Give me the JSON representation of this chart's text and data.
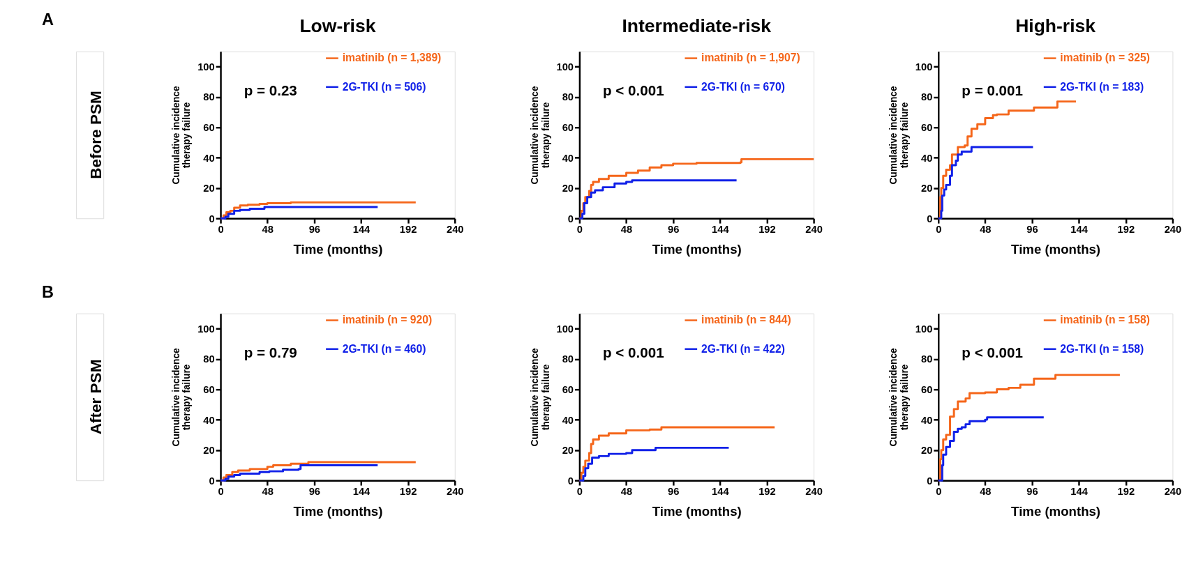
{
  "chart_data": [
    {
      "type": "step",
      "title": "Low-risk",
      "xlabel": "Time (months)",
      "ylabel": "Cumulative incidence therapy failure",
      "xlim": [
        0,
        240
      ],
      "xticks": [
        0,
        48,
        96,
        144,
        192,
        240
      ],
      "ylim": [
        0,
        110
      ],
      "yticks": [
        0,
        20,
        40,
        60,
        80,
        100
      ],
      "grid": false,
      "legend": "top right",
      "annotations": [
        "p = 0.23",
        "A",
        "Before PSM"
      ],
      "series": [
        {
          "name": "imatinib (n = 1,389)",
          "color": "#f5661a",
          "x": [
            0,
            3,
            6,
            10,
            14,
            20,
            28,
            40,
            48,
            72,
            200
          ],
          "values": [
            0,
            2,
            4,
            5,
            7,
            8.5,
            9,
            9.5,
            10,
            10.5,
            10.5
          ]
        },
        {
          "name": "2G-TKI (n = 506)",
          "color": "#1020e8",
          "x": [
            0,
            5,
            8,
            14,
            20,
            30,
            45,
            161
          ],
          "values": [
            0,
            1,
            3,
            5,
            5.5,
            6.3,
            7.5,
            7.5
          ]
        }
      ]
    },
    {
      "type": "step",
      "title": "Intermediate-risk",
      "xlabel": "Time (months)",
      "ylabel": "Cumulative incidence therapy failure",
      "xlim": [
        0,
        240
      ],
      "xticks": [
        0,
        48,
        96,
        144,
        192,
        240
      ],
      "ylim": [
        0,
        110
      ],
      "yticks": [
        0,
        20,
        40,
        60,
        80,
        100
      ],
      "grid": false,
      "legend": "top right",
      "annotations": [
        "p < 0.001"
      ],
      "series": [
        {
          "name": "imatinib (n = 1,907)",
          "color": "#f5661a",
          "x": [
            0,
            2,
            4,
            6,
            10,
            12,
            14,
            20,
            30,
            48,
            60,
            72,
            84,
            96,
            120,
            165,
            166,
            240
          ],
          "values": [
            0,
            5,
            10,
            14,
            18,
            22,
            24,
            26,
            28,
            30,
            31.5,
            33.5,
            35,
            36,
            36.5,
            37,
            39,
            39
          ]
        },
        {
          "name": "2G-TKI (n = 670)",
          "color": "#1020e8",
          "x": [
            0,
            3,
            5,
            8,
            12,
            16,
            24,
            36,
            48,
            54,
            161
          ],
          "values": [
            0,
            3,
            10,
            14,
            17,
            18.5,
            20.5,
            23,
            24,
            25,
            25
          ]
        }
      ]
    },
    {
      "type": "step",
      "title": "High-risk",
      "xlabel": "Time (months)",
      "ylabel": "Cumulative incidence therapy failure",
      "xlim": [
        0,
        240
      ],
      "xticks": [
        0,
        48,
        96,
        144,
        192,
        240
      ],
      "ylim": [
        0,
        110
      ],
      "yticks": [
        0,
        20,
        40,
        60,
        80,
        100
      ],
      "grid": false,
      "legend": "top right",
      "annotations": [
        "p = 0.001"
      ],
      "series": [
        {
          "name": "imatinib (n = 325)",
          "color": "#f5661a",
          "x": [
            0,
            2,
            3,
            5,
            8,
            12,
            14,
            20,
            27,
            30,
            34,
            40,
            48,
            56,
            60,
            72,
            96,
            98,
            120,
            122,
            141
          ],
          "values": [
            0,
            14,
            20,
            28,
            32,
            35,
            42,
            47,
            48,
            54,
            59,
            62,
            66,
            68,
            68.5,
            71,
            71,
            73,
            73,
            77,
            77
          ]
        },
        {
          "name": "2G-TKI (n = 183)",
          "color": "#1020e8",
          "x": [
            0,
            3,
            4,
            6,
            8,
            12,
            14,
            18,
            20,
            24,
            32,
            34,
            97
          ],
          "values": [
            0,
            5,
            15,
            19,
            22,
            28,
            35,
            38,
            42,
            44,
            44,
            47,
            47
          ]
        }
      ]
    },
    {
      "type": "step",
      "xlabel": "Time (months)",
      "ylabel": "Cumulative incidence therapy failure",
      "xlim": [
        0,
        240
      ],
      "xticks": [
        0,
        48,
        96,
        144,
        192,
        240
      ],
      "ylim": [
        0,
        110
      ],
      "yticks": [
        0,
        20,
        40,
        60,
        80,
        100
      ],
      "grid": false,
      "legend": "top right",
      "annotations": [
        "p = 0.79",
        "B",
        "After PSM"
      ],
      "series": [
        {
          "name": "imatinib (n = 920)",
          "color": "#f5661a",
          "x": [
            0,
            3,
            6,
            12,
            18,
            30,
            48,
            54,
            72,
            90,
            200
          ],
          "values": [
            0,
            2,
            3.5,
            5.5,
            6.5,
            7.5,
            9,
            10,
            11,
            12,
            12
          ]
        },
        {
          "name": "2G-TKI (n = 460)",
          "color": "#1020e8",
          "x": [
            0,
            5,
            8,
            14,
            20,
            40,
            50,
            64,
            80,
            82,
            161
          ],
          "values": [
            0,
            1,
            2.5,
            3.5,
            4.5,
            5.5,
            6,
            7,
            7.5,
            10,
            10
          ]
        }
      ]
    },
    {
      "type": "step",
      "xlabel": "Time (months)",
      "ylabel": "Cumulative incidence therapy failure",
      "xlim": [
        0,
        240
      ],
      "xticks": [
        0,
        48,
        96,
        144,
        192,
        240
      ],
      "ylim": [
        0,
        110
      ],
      "yticks": [
        0,
        20,
        40,
        60,
        80,
        100
      ],
      "grid": false,
      "legend": "top right",
      "annotations": [
        "p < 0.001"
      ],
      "series": [
        {
          "name": "imatinib (n = 844)",
          "color": "#f5661a",
          "x": [
            0,
            2,
            4,
            6,
            10,
            12,
            14,
            20,
            30,
            48,
            72,
            84,
            200
          ],
          "values": [
            0,
            5,
            9,
            13,
            18,
            24,
            27,
            29.5,
            31,
            33,
            33.5,
            35,
            35
          ]
        },
        {
          "name": "2G-TKI (n = 422)",
          "color": "#1020e8",
          "x": [
            0,
            4,
            6,
            9,
            13,
            20,
            30,
            48,
            54,
            78,
            153
          ],
          "values": [
            0,
            3,
            8,
            11,
            15,
            16,
            17.5,
            18,
            20,
            21.5,
            21.5
          ]
        }
      ]
    },
    {
      "type": "step",
      "xlabel": "Time (months)",
      "ylabel": "Cumulative incidence therapy failure",
      "xlim": [
        0,
        240
      ],
      "xticks": [
        0,
        48,
        96,
        144,
        192,
        240
      ],
      "ylim": [
        0,
        110
      ],
      "yticks": [
        0,
        20,
        40,
        60,
        80,
        100
      ],
      "grid": false,
      "legend": "top right",
      "annotations": [
        "p < 0.001"
      ],
      "series": [
        {
          "name": "imatinib (n = 158)",
          "color": "#f5661a",
          "x": [
            0,
            2,
            3,
            5,
            8,
            12,
            16,
            20,
            28,
            32,
            48,
            60,
            72,
            84,
            96,
            98,
            120,
            186
          ],
          "values": [
            0,
            14,
            20,
            27,
            30,
            42,
            47,
            52,
            54,
            57.5,
            58,
            60,
            61,
            63,
            63,
            67,
            69.5,
            69.5
          ]
        },
        {
          "name": "2G-TKI (n = 158)",
          "color": "#1020e8",
          "x": [
            0,
            4,
            5,
            8,
            12,
            16,
            20,
            24,
            28,
            32,
            48,
            50,
            108
          ],
          "values": [
            0,
            10,
            17,
            22,
            26,
            32,
            34,
            35,
            37,
            39,
            40,
            41.5,
            41.5
          ]
        }
      ]
    }
  ]
}
